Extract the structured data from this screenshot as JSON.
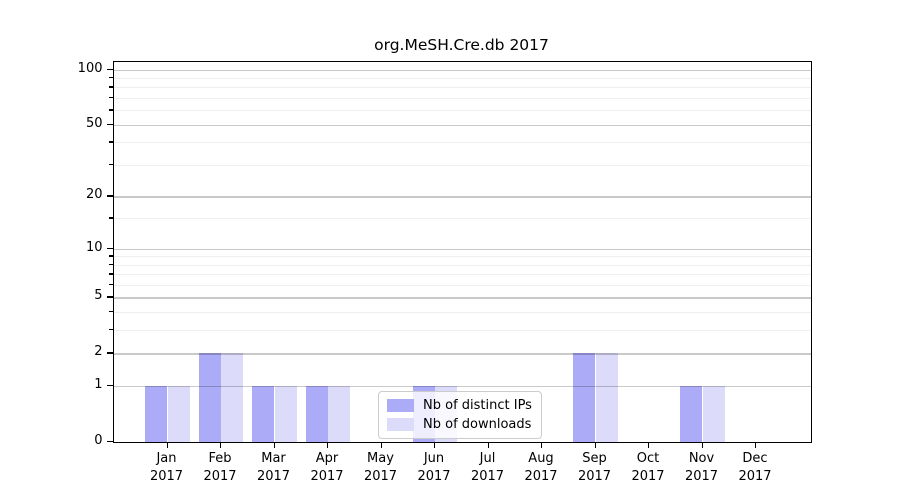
{
  "chart_data": {
    "type": "bar",
    "title": "org.MeSH.Cre.db 2017",
    "year_label": "2017",
    "categories": [
      "Jan",
      "Feb",
      "Mar",
      "Apr",
      "May",
      "Jun",
      "Jul",
      "Aug",
      "Sep",
      "Oct",
      "Nov",
      "Dec"
    ],
    "series": [
      {
        "name": "Nb of distinct IPs",
        "color": "#acabf7",
        "values": [
          1,
          2,
          1,
          1,
          0,
          1,
          0,
          0,
          2,
          0,
          1,
          0
        ]
      },
      {
        "name": "Nb of downloads",
        "color": "#dcdbf9",
        "values": [
          1,
          2,
          1,
          1,
          0,
          1,
          0,
          0,
          2,
          0,
          1,
          0
        ]
      }
    ],
    "yscale": "log10(1+v)",
    "ylim": [
      0,
      110
    ],
    "yticks": [
      0,
      1,
      2,
      5,
      10,
      20,
      50,
      100
    ],
    "yticks_minor": [
      3,
      4,
      6,
      7,
      8,
      9,
      15,
      30,
      40,
      60,
      70,
      80,
      90
    ],
    "grid": "on",
    "grid_on_top_of_bars": true,
    "legend_position": "lower center"
  },
  "colors": {
    "axis": "#000000",
    "grid_major": "#c9c9c9",
    "grid_minor": "#efefef",
    "legend_border": "#cccccc",
    "legend_bg": "#ffffff",
    "bar_distinct_ips": "#acabf7",
    "bar_downloads": "#dcdbf9"
  }
}
